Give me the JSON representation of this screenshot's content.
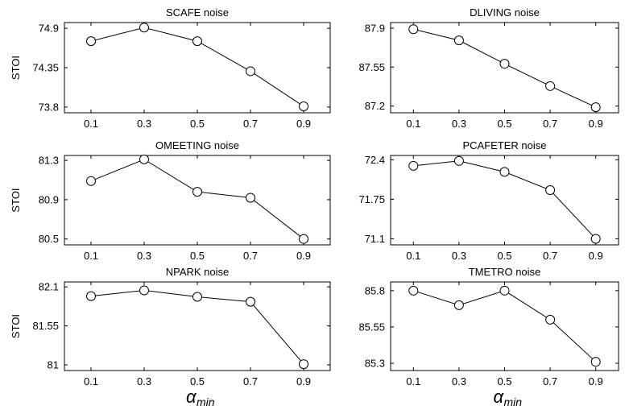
{
  "figure": {
    "xlabel_symbol": "α",
    "xlabel_subscript": "min",
    "ylabel": "STOI"
  },
  "chart_data": [
    {
      "type": "line",
      "title": "SCAFE noise",
      "xlabel": "",
      "ylabel": "STOI",
      "x": [
        0.1,
        0.3,
        0.5,
        0.7,
        0.9
      ],
      "x_ticks": [
        "0.1",
        "0.3",
        "0.5",
        "0.7",
        "0.9"
      ],
      "values": [
        74.72,
        74.91,
        74.72,
        74.3,
        73.81
      ],
      "y_ticks": [
        73.8,
        74.35,
        74.9
      ],
      "y_tick_labels": [
        "73.8",
        "74.35",
        "74.9"
      ],
      "ylim": [
        73.72,
        74.98
      ],
      "marker": "open-circle",
      "color": "#000000",
      "grid": false
    },
    {
      "type": "line",
      "title": "DLIVING noise",
      "xlabel": "",
      "ylabel": "",
      "x": [
        0.1,
        0.3,
        0.5,
        0.7,
        0.9
      ],
      "x_ticks": [
        "0.1",
        "0.3",
        "0.5",
        "0.7",
        "0.9"
      ],
      "values": [
        87.89,
        87.79,
        87.58,
        87.38,
        87.19
      ],
      "y_ticks": [
        87.2,
        87.55,
        87.9
      ],
      "y_tick_labels": [
        "87.2",
        "87.55",
        "87.9"
      ],
      "ylim": [
        87.14,
        87.95
      ],
      "marker": "open-circle",
      "color": "#000000",
      "grid": false
    },
    {
      "type": "line",
      "title": "OMEETING noise",
      "xlabel": "",
      "ylabel": "STOI",
      "x": [
        0.1,
        0.3,
        0.5,
        0.7,
        0.9
      ],
      "x_ticks": [
        "0.1",
        "0.3",
        "0.5",
        "0.7",
        "0.9"
      ],
      "values": [
        81.09,
        81.31,
        80.98,
        80.92,
        80.5
      ],
      "y_ticks": [
        80.5,
        80.9,
        81.3
      ],
      "y_tick_labels": [
        "80.5",
        "80.9",
        "81.3"
      ],
      "ylim": [
        80.44,
        81.35
      ],
      "marker": "open-circle",
      "color": "#000000",
      "grid": false
    },
    {
      "type": "line",
      "title": "PCAFETER noise",
      "xlabel": "",
      "ylabel": "",
      "x": [
        0.1,
        0.3,
        0.5,
        0.7,
        0.9
      ],
      "x_ticks": [
        "0.1",
        "0.3",
        "0.5",
        "0.7",
        "0.9"
      ],
      "values": [
        72.3,
        72.38,
        72.2,
        71.9,
        71.1
      ],
      "y_ticks": [
        71.1,
        71.75,
        72.4
      ],
      "y_tick_labels": [
        "71.1",
        "71.75",
        "72.4"
      ],
      "ylim": [
        71.0,
        72.47
      ],
      "marker": "open-circle",
      "color": "#000000",
      "grid": false
    },
    {
      "type": "line",
      "title": "NPARK noise",
      "xlabel": "α_min",
      "ylabel": "STOI",
      "x": [
        0.1,
        0.3,
        0.5,
        0.7,
        0.9
      ],
      "x_ticks": [
        "0.1",
        "0.3",
        "0.5",
        "0.7",
        "0.9"
      ],
      "values": [
        81.97,
        82.05,
        81.96,
        81.89,
        81.01
      ],
      "y_ticks": [
        81,
        81.55,
        82.1
      ],
      "y_tick_labels": [
        "81",
        "81.55",
        "82.1"
      ],
      "ylim": [
        80.92,
        82.17
      ],
      "marker": "open-circle",
      "color": "#000000",
      "grid": false
    },
    {
      "type": "line",
      "title": "TMETRO noise",
      "xlabel": "α_min",
      "ylabel": "",
      "x": [
        0.1,
        0.3,
        0.5,
        0.7,
        0.9
      ],
      "x_ticks": [
        "0.1",
        "0.3",
        "0.5",
        "0.7",
        "0.9"
      ],
      "values": [
        85.8,
        85.7,
        85.8,
        85.6,
        85.31
      ],
      "y_ticks": [
        85.3,
        85.55,
        85.8
      ],
      "y_tick_labels": [
        "85.3",
        "85.55",
        "85.8"
      ],
      "ylim": [
        85.25,
        85.86
      ],
      "marker": "open-circle",
      "color": "#000000",
      "grid": false
    }
  ]
}
